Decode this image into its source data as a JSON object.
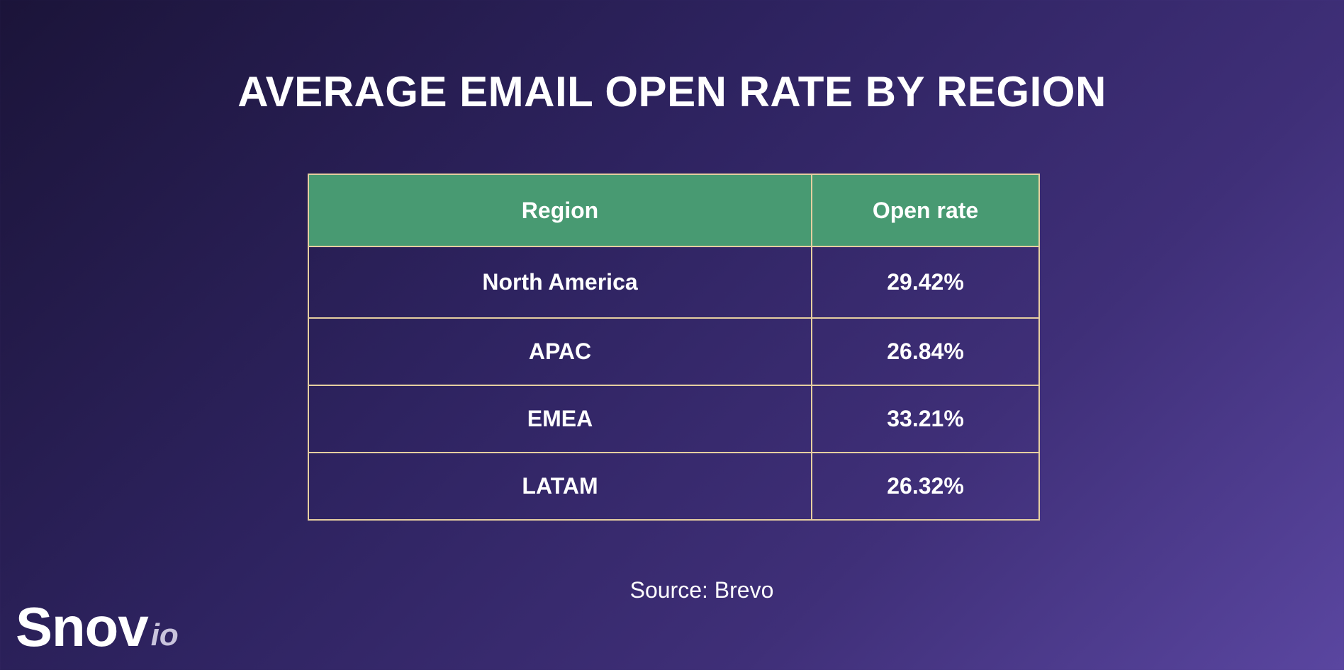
{
  "title": "AVERAGE EMAIL OPEN RATE BY REGION",
  "source": "Source: Brevo",
  "logo": {
    "main": "Snov",
    "sub": "io"
  },
  "colors": {
    "header_bg": "#489a72",
    "border": "#e6cfa0",
    "background_start": "#1b1439",
    "background_end": "#5a46a0"
  },
  "chart_data": {
    "type": "table",
    "title": "AVERAGE EMAIL OPEN RATE BY REGION",
    "columns": [
      "Region",
      "Open rate"
    ],
    "rows": [
      [
        "North America",
        "29.42%"
      ],
      [
        "APAC",
        "26.84%"
      ],
      [
        "EMEA",
        "33.21%"
      ],
      [
        "LATAM",
        "26.32%"
      ]
    ],
    "values": [
      29.42,
      26.84,
      33.21,
      26.32
    ],
    "categories": [
      "North America",
      "APAC",
      "EMEA",
      "LATAM"
    ]
  }
}
